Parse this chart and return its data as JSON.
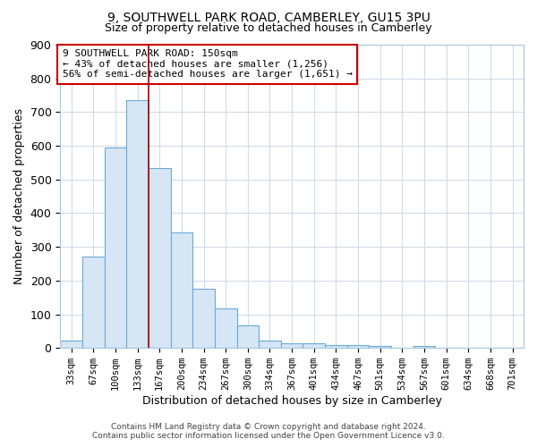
{
  "title_line1": "9, SOUTHWELL PARK ROAD, CAMBERLEY, GU15 3PU",
  "title_line2": "Size of property relative to detached houses in Camberley",
  "xlabel": "Distribution of detached houses by size in Camberley",
  "ylabel": "Number of detached properties",
  "categories": [
    "33sqm",
    "67sqm",
    "100sqm",
    "133sqm",
    "167sqm",
    "200sqm",
    "234sqm",
    "267sqm",
    "300sqm",
    "334sqm",
    "367sqm",
    "401sqm",
    "434sqm",
    "467sqm",
    "501sqm",
    "534sqm",
    "567sqm",
    "601sqm",
    "634sqm",
    "668sqm",
    "701sqm"
  ],
  "values": [
    22,
    272,
    595,
    735,
    535,
    343,
    177,
    117,
    67,
    22,
    13,
    13,
    8,
    8,
    7,
    0,
    5,
    0,
    0,
    0,
    0
  ],
  "bar_color": "#d6e6f5",
  "bar_edge_color": "#6aaad4",
  "vline_x": 3.5,
  "vline_color": "#aa0000",
  "annotation_text": "9 SOUTHWELL PARK ROAD: 150sqm\n← 43% of detached houses are smaller (1,256)\n56% of semi-detached houses are larger (1,651) →",
  "annotation_box_color": "#ffffff",
  "annotation_box_edge": "#cc0000",
  "ylim": [
    0,
    900
  ],
  "yticks": [
    0,
    100,
    200,
    300,
    400,
    500,
    600,
    700,
    800,
    900
  ],
  "footer_line1": "Contains HM Land Registry data © Crown copyright and database right 2024.",
  "footer_line2": "Contains public sector information licensed under the Open Government Licence v3.0.",
  "bg_color": "#ffffff",
  "plot_bg_color": "#ffffff",
  "grid_color": "#d0dce8"
}
